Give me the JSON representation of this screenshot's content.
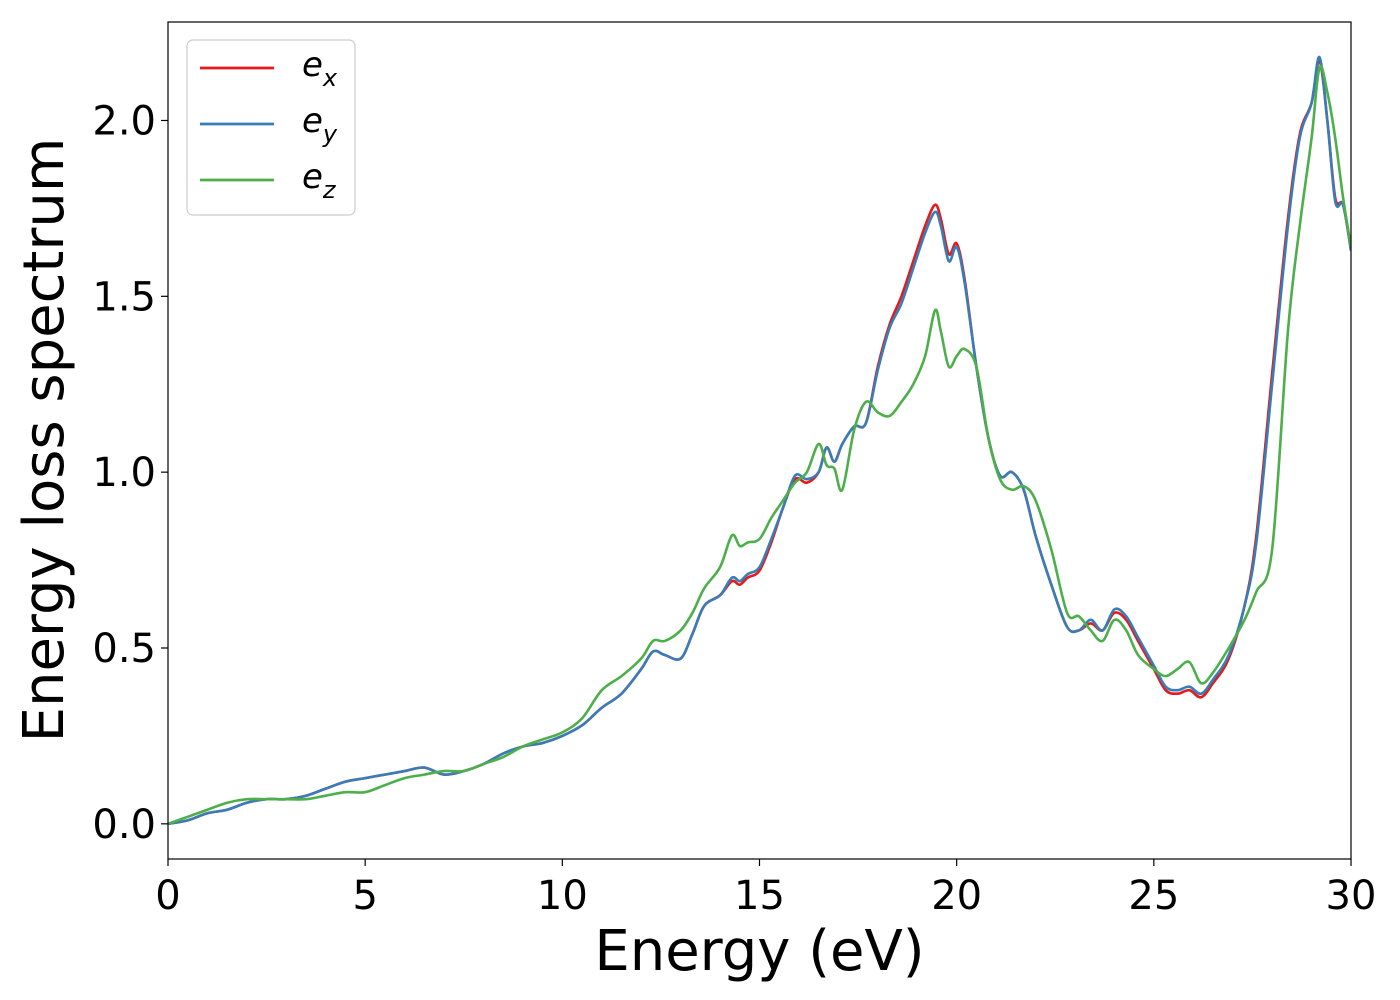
{
  "chart_data": {
    "type": "line",
    "xlabel": "Energy (eV)",
    "ylabel": "Energy loss spectrum",
    "xlim": [
      0,
      30
    ],
    "ylim": [
      -0.1,
      2.28
    ],
    "xticks": [
      0,
      5,
      10,
      15,
      20,
      25,
      30
    ],
    "xtick_labels": [
      "0",
      "5",
      "10",
      "15",
      "20",
      "25",
      "30"
    ],
    "yticks": [
      0.0,
      0.5,
      1.0,
      1.5,
      2.0
    ],
    "ytick_labels": [
      "0.0",
      "0.5",
      "1.0",
      "1.5",
      "2.0"
    ],
    "grid": false,
    "legend_position": "top-left",
    "series": [
      {
        "name": "e_x",
        "label_main": "e",
        "label_sub": "x",
        "color": "#e41a1c",
        "x": [
          0,
          0.5,
          1,
          1.5,
          2,
          2.5,
          3,
          3.5,
          4,
          4.5,
          5,
          5.5,
          6,
          6.5,
          7,
          7.5,
          8,
          8.5,
          9,
          9.5,
          10,
          10.5,
          11,
          11.5,
          12,
          12.3,
          12.6,
          13,
          13.3,
          13.6,
          14,
          14.3,
          14.5,
          14.7,
          15,
          15.3,
          15.6,
          15.9,
          16.2,
          16.5,
          16.7,
          16.9,
          17.1,
          17.4,
          17.7,
          18,
          18.3,
          18.6,
          18.9,
          19.2,
          19.45,
          19.6,
          19.8,
          20.0,
          20.2,
          20.5,
          20.8,
          21.1,
          21.4,
          21.7,
          22,
          22.4,
          22.8,
          23.1,
          23.4,
          23.7,
          24,
          24.3,
          24.6,
          25,
          25.3,
          25.6,
          25.9,
          26.2,
          26.5,
          26.9,
          27.3,
          27.6,
          28,
          28.4,
          28.7,
          29,
          29.2,
          29.4,
          29.6,
          29.8,
          30
        ],
        "y": [
          0.0,
          0.01,
          0.03,
          0.04,
          0.06,
          0.07,
          0.07,
          0.08,
          0.1,
          0.12,
          0.13,
          0.14,
          0.15,
          0.16,
          0.14,
          0.15,
          0.17,
          0.2,
          0.22,
          0.23,
          0.25,
          0.28,
          0.33,
          0.37,
          0.44,
          0.49,
          0.48,
          0.47,
          0.54,
          0.62,
          0.65,
          0.69,
          0.68,
          0.7,
          0.72,
          0.8,
          0.9,
          0.98,
          0.97,
          1.0,
          1.07,
          1.03,
          1.08,
          1.13,
          1.14,
          1.3,
          1.42,
          1.5,
          1.6,
          1.7,
          1.76,
          1.72,
          1.62,
          1.65,
          1.55,
          1.3,
          1.1,
          0.99,
          1.0,
          0.95,
          0.82,
          0.68,
          0.56,
          0.55,
          0.57,
          0.55,
          0.6,
          0.58,
          0.52,
          0.44,
          0.38,
          0.37,
          0.38,
          0.36,
          0.4,
          0.47,
          0.62,
          0.82,
          1.28,
          1.72,
          1.96,
          2.05,
          2.17,
          2.0,
          1.78,
          1.76,
          1.63
        ]
      },
      {
        "name": "e_y",
        "label_main": "e",
        "label_sub": "y",
        "color": "#377eb8",
        "x": [
          0,
          0.5,
          1,
          1.5,
          2,
          2.5,
          3,
          3.5,
          4,
          4.5,
          5,
          5.5,
          6,
          6.5,
          7,
          7.5,
          8,
          8.5,
          9,
          9.5,
          10,
          10.5,
          11,
          11.5,
          12,
          12.3,
          12.6,
          13,
          13.3,
          13.6,
          14,
          14.3,
          14.5,
          14.7,
          15,
          15.3,
          15.6,
          15.9,
          16.2,
          16.5,
          16.7,
          16.9,
          17.1,
          17.4,
          17.7,
          18,
          18.3,
          18.6,
          18.9,
          19.2,
          19.45,
          19.6,
          19.8,
          20.0,
          20.2,
          20.5,
          20.8,
          21.1,
          21.4,
          21.7,
          22,
          22.4,
          22.8,
          23.1,
          23.4,
          23.7,
          24,
          24.3,
          24.6,
          25,
          25.3,
          25.6,
          25.9,
          26.2,
          26.5,
          26.9,
          27.3,
          27.6,
          28,
          28.4,
          28.7,
          29,
          29.2,
          29.4,
          29.6,
          29.8,
          30
        ],
        "y": [
          0.0,
          0.01,
          0.03,
          0.04,
          0.06,
          0.07,
          0.07,
          0.08,
          0.1,
          0.12,
          0.13,
          0.14,
          0.15,
          0.16,
          0.14,
          0.15,
          0.17,
          0.2,
          0.22,
          0.23,
          0.25,
          0.28,
          0.33,
          0.37,
          0.44,
          0.49,
          0.48,
          0.47,
          0.54,
          0.62,
          0.65,
          0.7,
          0.69,
          0.71,
          0.73,
          0.81,
          0.9,
          0.99,
          0.98,
          1.0,
          1.07,
          1.03,
          1.08,
          1.13,
          1.14,
          1.29,
          1.41,
          1.48,
          1.58,
          1.68,
          1.74,
          1.7,
          1.6,
          1.64,
          1.54,
          1.3,
          1.1,
          0.99,
          1.0,
          0.95,
          0.82,
          0.68,
          0.56,
          0.55,
          0.58,
          0.55,
          0.61,
          0.59,
          0.53,
          0.45,
          0.39,
          0.38,
          0.39,
          0.37,
          0.41,
          0.48,
          0.62,
          0.8,
          1.25,
          1.7,
          1.95,
          2.05,
          2.18,
          2.0,
          1.77,
          1.76,
          1.63
        ]
      },
      {
        "name": "e_z",
        "label_main": "e",
        "label_sub": "z",
        "color": "#4daf4a",
        "x": [
          0,
          0.5,
          1,
          1.5,
          2,
          2.5,
          3,
          3.5,
          4,
          4.5,
          5,
          5.5,
          6,
          6.5,
          7,
          7.5,
          8,
          8.5,
          9,
          9.5,
          10,
          10.5,
          11,
          11.5,
          12,
          12.3,
          12.6,
          13,
          13.3,
          13.6,
          14,
          14.3,
          14.5,
          14.7,
          15,
          15.3,
          15.6,
          15.9,
          16.2,
          16.5,
          16.7,
          16.9,
          17.1,
          17.4,
          17.7,
          18,
          18.3,
          18.6,
          18.9,
          19.2,
          19.45,
          19.6,
          19.8,
          20.0,
          20.2,
          20.5,
          20.8,
          21.1,
          21.4,
          21.7,
          22,
          22.4,
          22.8,
          23.1,
          23.4,
          23.7,
          24,
          24.3,
          24.6,
          25,
          25.3,
          25.6,
          25.9,
          26.2,
          26.5,
          26.9,
          27.3,
          27.6,
          28,
          28.4,
          28.7,
          29,
          29.2,
          29.4,
          29.6,
          29.8,
          30
        ],
        "y": [
          0.0,
          0.02,
          0.04,
          0.06,
          0.07,
          0.07,
          0.07,
          0.07,
          0.08,
          0.09,
          0.09,
          0.11,
          0.13,
          0.14,
          0.15,
          0.15,
          0.17,
          0.19,
          0.22,
          0.24,
          0.26,
          0.3,
          0.38,
          0.42,
          0.47,
          0.52,
          0.52,
          0.55,
          0.6,
          0.67,
          0.73,
          0.82,
          0.79,
          0.8,
          0.81,
          0.87,
          0.92,
          0.97,
          1.0,
          1.08,
          1.02,
          1.01,
          0.95,
          1.12,
          1.2,
          1.17,
          1.16,
          1.2,
          1.25,
          1.33,
          1.46,
          1.4,
          1.3,
          1.33,
          1.35,
          1.3,
          1.1,
          0.98,
          0.95,
          0.96,
          0.92,
          0.78,
          0.6,
          0.59,
          0.55,
          0.52,
          0.58,
          0.55,
          0.48,
          0.44,
          0.42,
          0.44,
          0.46,
          0.4,
          0.43,
          0.5,
          0.58,
          0.66,
          0.78,
          1.4,
          1.7,
          1.95,
          2.15,
          2.08,
          1.95,
          1.78,
          1.64
        ]
      }
    ]
  }
}
